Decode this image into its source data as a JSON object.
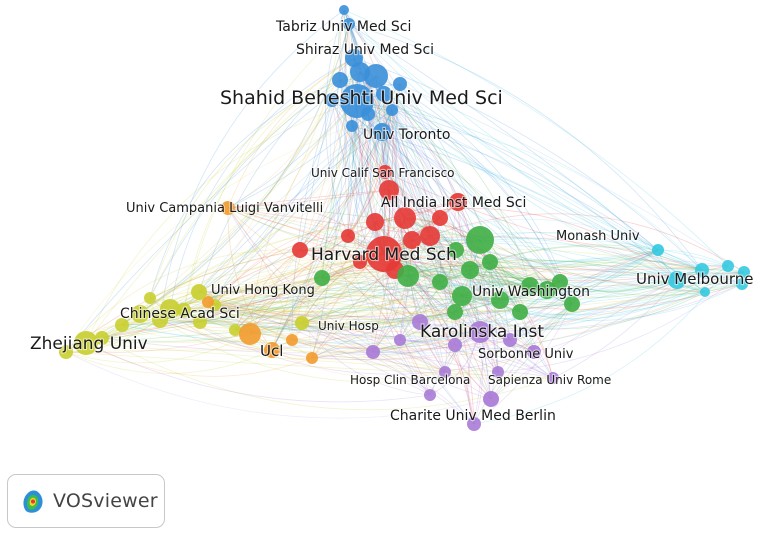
{
  "app": {
    "brand_name": "VOSviewer",
    "logo_icon": "vosviewer-logo-icon"
  },
  "clusters": {
    "blue": "#3a8fd9",
    "red": "#e53935",
    "green": "#3fae45",
    "yellow": "#c9cf30",
    "orange": "#f29b2e",
    "purple": "#a97bd6",
    "cyan": "#35c9e0"
  },
  "nodes": [
    {
      "id": "shahid",
      "label": "Shahid Beheshti Univ Med Sci",
      "cluster": "blue",
      "weight": 5
    },
    {
      "id": "tabriz",
      "label": "Tabriz Univ Med Sci",
      "cluster": "blue",
      "weight": 2
    },
    {
      "id": "shiraz",
      "label": "Shiraz Univ Med Sci",
      "cluster": "blue",
      "weight": 2
    },
    {
      "id": "toronto",
      "label": "Univ Toronto",
      "cluster": "blue",
      "weight": 2
    },
    {
      "id": "ucsf",
      "label": "Univ Calif San Francisco",
      "cluster": "red",
      "weight": 2
    },
    {
      "id": "aiims",
      "label": "All India Inst Med Sci",
      "cluster": "red",
      "weight": 2
    },
    {
      "id": "harvard",
      "label": "Harvard Med Sch",
      "cluster": "red",
      "weight": 5
    },
    {
      "id": "campania",
      "label": "Univ Campania Luigi Vanvitelli",
      "cluster": "orange",
      "weight": 2
    },
    {
      "id": "ucl",
      "label": "Ucl",
      "cluster": "orange",
      "weight": 3
    },
    {
      "id": "monash",
      "label": "Monash Univ",
      "cluster": "cyan",
      "weight": 2
    },
    {
      "id": "melbourne",
      "label": "Univ Melbourne",
      "cluster": "cyan",
      "weight": 3
    },
    {
      "id": "washington",
      "label": "Univ Washington",
      "cluster": "green",
      "weight": 3
    },
    {
      "id": "hku",
      "label": "Univ Hong Kong",
      "cluster": "yellow",
      "weight": 2
    },
    {
      "id": "cas",
      "label": "Chinese Acad Sci",
      "cluster": "yellow",
      "weight": 2
    },
    {
      "id": "zhejiang",
      "label": "Zhejiang Univ",
      "cluster": "yellow",
      "weight": 3
    },
    {
      "id": "univhosp",
      "label": "Univ Hosp",
      "cluster": "yellow",
      "weight": 1
    },
    {
      "id": "karolinska",
      "label": "Karolinska Inst",
      "cluster": "purple",
      "weight": 3
    },
    {
      "id": "sorbonne",
      "label": "Sorbonne Univ",
      "cluster": "purple",
      "weight": 2
    },
    {
      "id": "barcelona",
      "label": "Hosp Clin Barcelona",
      "cluster": "purple",
      "weight": 2
    },
    {
      "id": "sapienza",
      "label": "Sapienza Univ Rome",
      "cluster": "purple",
      "weight": 2
    },
    {
      "id": "charite",
      "label": "Charite Univ Med Berlin",
      "cluster": "purple",
      "weight": 2
    }
  ]
}
